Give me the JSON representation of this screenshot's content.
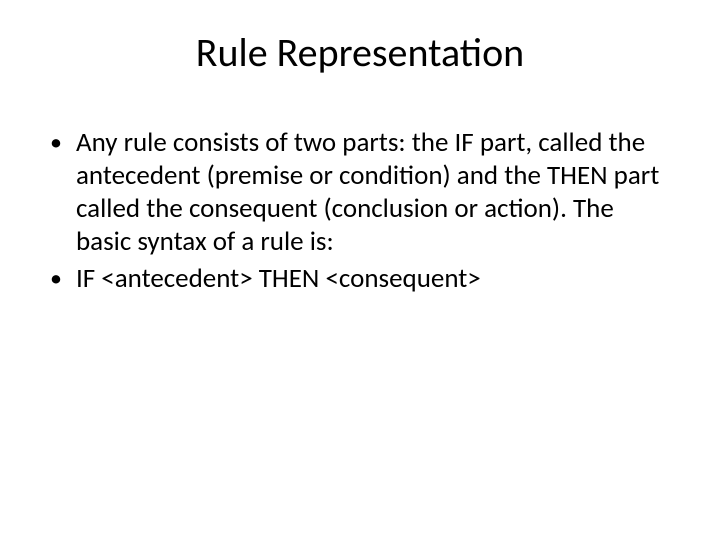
{
  "slide": {
    "title": "Rule Representation",
    "bullets": [
      {
        "marker": "•",
        "text": "Any rule consists of two parts: the IF part, called the antecedent (premise or condition) and the THEN part called the consequent (conclusion or action). The basic syntax of a rule is:"
      },
      {
        "marker": "•",
        "text": "IF <antecedent> THEN <consequent>"
      }
    ]
  },
  "style": {
    "background_color": "#ffffff",
    "text_color": "#000000",
    "title_fontsize": 40,
    "body_fontsize": 27,
    "font_family": "Calibri"
  }
}
